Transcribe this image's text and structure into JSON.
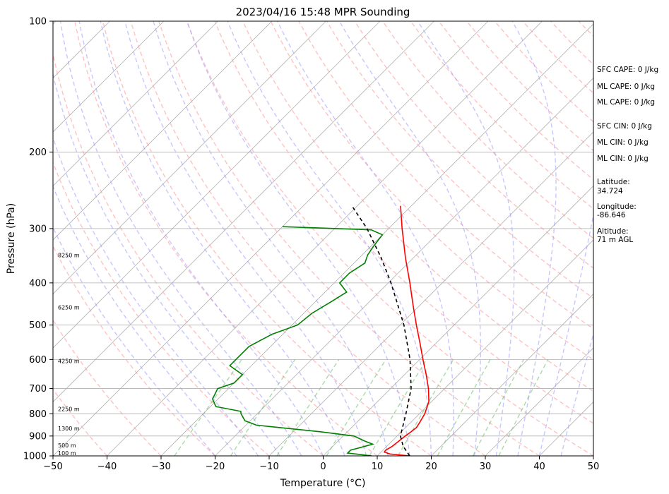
{
  "chart_data": {
    "type": "line",
    "subtype": "skew-t log-p sounding",
    "title": "2023/04/16 15:48 MPR Sounding",
    "xlabel": "Temperature (°C)",
    "ylabel": "Pressure (hPa)",
    "xlim": [
      -50,
      50
    ],
    "ylim": [
      1000,
      100
    ],
    "y_scale": "log",
    "x_ticks": [
      "−50",
      "−40",
      "−30",
      "−20",
      "−10",
      "0",
      "10",
      "20",
      "30",
      "40",
      "50"
    ],
    "y_ticks": [
      "1000",
      "900",
      "800",
      "700",
      "600",
      "500",
      "400",
      "300",
      "200",
      "100"
    ],
    "grid": "horizontal at pressure ticks",
    "background_lines": [
      "isotherms (gray)",
      "dry adiabats (red dashed)",
      "moist adiabats (blue dashed)",
      "mixing ratio (green dashed)"
    ],
    "height_labels": [
      {
        "text": "100 m",
        "p": 985
      },
      {
        "text": "500 m",
        "p": 945
      },
      {
        "text": "1300 m",
        "p": 865
      },
      {
        "text": "2250 m",
        "p": 780
      },
      {
        "text": "4250 m",
        "p": 605
      },
      {
        "text": "6250 m",
        "p": 455
      },
      {
        "text": "8250 m",
        "p": 345
      }
    ],
    "series": [
      {
        "name": "",
        "role": "temperature",
        "color": "#ff0000",
        "points": [
          [
            1000,
            16
          ],
          [
            990,
            12
          ],
          [
            980,
            10.6
          ],
          [
            970,
            10.5
          ],
          [
            950,
            11
          ],
          [
            930,
            11.2
          ],
          [
            900,
            11.5
          ],
          [
            880,
            11.8
          ],
          [
            860,
            12
          ],
          [
            840,
            11.7
          ],
          [
            800,
            11
          ],
          [
            750,
            9.5
          ],
          [
            700,
            7
          ],
          [
            650,
            4
          ],
          [
            600,
            0.6
          ],
          [
            550,
            -3
          ],
          [
            500,
            -7
          ],
          [
            450,
            -11.3
          ],
          [
            400,
            -16
          ],
          [
            350,
            -21.5
          ],
          [
            300,
            -27.5
          ],
          [
            266,
            -32
          ]
        ]
      },
      {
        "name": "",
        "role": "dewpoint",
        "color": "#008000",
        "points": [
          [
            1000,
            9
          ],
          [
            985,
            4
          ],
          [
            970,
            4
          ],
          [
            955,
            5.5
          ],
          [
            940,
            7
          ],
          [
            925,
            5
          ],
          [
            900,
            2
          ],
          [
            880,
            -5
          ],
          [
            850,
            -18
          ],
          [
            830,
            -21
          ],
          [
            800,
            -23
          ],
          [
            790,
            -23.5
          ],
          [
            770,
            -29
          ],
          [
            740,
            -31
          ],
          [
            700,
            -32
          ],
          [
            680,
            -30
          ],
          [
            650,
            -30
          ],
          [
            620,
            -34
          ],
          [
            600,
            -34
          ],
          [
            560,
            -34
          ],
          [
            525,
            -32
          ],
          [
            500,
            -29
          ],
          [
            470,
            -28.5
          ],
          [
            440,
            -27
          ],
          [
            420,
            -26
          ],
          [
            400,
            -29
          ],
          [
            380,
            -29
          ],
          [
            360,
            -28
          ],
          [
            345,
            -29
          ],
          [
            330,
            -29.5
          ],
          [
            310,
            -30
          ],
          [
            302,
            -33
          ],
          [
            297,
            -50
          ]
        ]
      },
      {
        "name": "",
        "role": "parcel",
        "color": "#000000",
        "style": "dashed",
        "points": [
          [
            1000,
            16
          ],
          [
            950,
            13
          ],
          [
            900,
            10.6
          ],
          [
            850,
            9.1
          ],
          [
            800,
            7.5
          ],
          [
            700,
            3.8
          ],
          [
            600,
            -1.8
          ],
          [
            500,
            -9.3
          ],
          [
            400,
            -19.5
          ],
          [
            350,
            -26
          ],
          [
            300,
            -34
          ],
          [
            266,
            -41
          ]
        ]
      }
    ],
    "annotations": [
      {
        "label": "SFC CAPE",
        "value": "0 J/kg"
      },
      {
        "label": "ML CAPE",
        "value": "0 J/kg"
      },
      {
        "label": "ML CAPE",
        "value": "0 J/kg"
      },
      {
        "label": "SFC CIN",
        "value": "0 J/kg"
      },
      {
        "label": "ML CIN",
        "value": "0 J/kg"
      },
      {
        "label": "ML CIN",
        "value": "0 J/kg"
      },
      {
        "label": "Latitude:",
        "value": "34.724"
      },
      {
        "label": "Longitude:",
        "value": "-86.646"
      },
      {
        "label": "Altitude:",
        "value": "71 m AGL"
      }
    ]
  },
  "colors": {
    "temperature": "#ff0000",
    "dewpoint": "#008000",
    "parcel": "#000000",
    "isotherm": "#b3b3b3",
    "dry_adiabat": "#ff9999",
    "moist_adiabat": "#9999ff",
    "mixing_ratio": "#66bb66"
  }
}
